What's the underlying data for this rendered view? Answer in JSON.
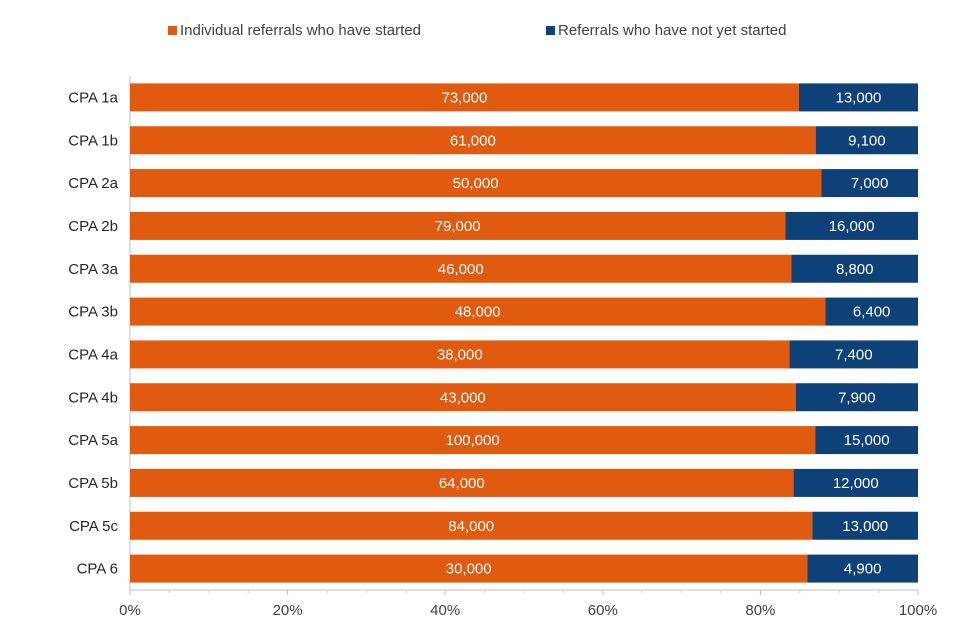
{
  "chart_data": {
    "type": "bar",
    "orientation": "horizontal",
    "stacked": "percent",
    "title": "",
    "xlabel": "",
    "ylabel": "",
    "xlim": [
      0,
      100
    ],
    "x_ticks": [
      "0%",
      "20%",
      "40%",
      "60%",
      "80%",
      "100%"
    ],
    "grid": false,
    "legend_position": "top",
    "categories": [
      "CPA 1a",
      "CPA 1b",
      "CPA 2a",
      "CPA 2b",
      "CPA 3a",
      "CPA 3b",
      "CPA 4a",
      "CPA 4b",
      "CPA 5a",
      "CPA 5b",
      "CPA 5c",
      "CPA 6"
    ],
    "series": [
      {
        "name": "Individual referrals who have started",
        "color": "#e05a0f",
        "values": [
          73000,
          61000,
          50000,
          79000,
          46000,
          48000,
          38000,
          43000,
          100000,
          64000,
          84000,
          30000
        ],
        "labels": [
          "73,000",
          "61,000",
          "50,000",
          "79,000",
          "46,000",
          "48,000",
          "38,000",
          "43,000",
          "100,000",
          "64,000",
          "84,000",
          "30,000"
        ]
      },
      {
        "name": "Referrals who have not yet started",
        "color": "#0e4178",
        "values": [
          13000,
          9100,
          7000,
          16000,
          8800,
          6400,
          7400,
          7900,
          15000,
          12000,
          13000,
          4900
        ],
        "labels": [
          "13,000",
          "9,100",
          "7,000",
          "16,000",
          "8,800",
          "6,400",
          "7,400",
          "7,900",
          "15,000",
          "12,000",
          "13,000",
          "4,900"
        ]
      }
    ]
  }
}
